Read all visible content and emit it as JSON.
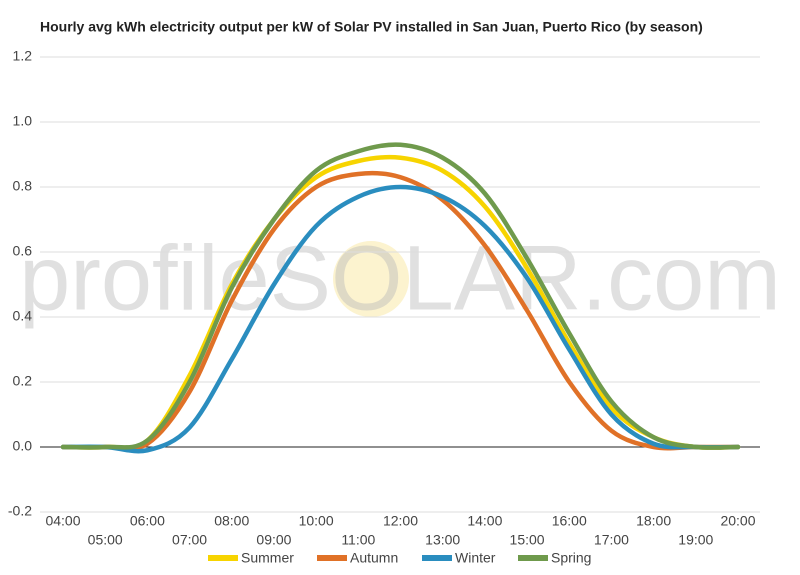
{
  "chart_data": {
    "type": "line",
    "title": "Hourly avg kWh electricity output per kW of Solar PV installed in San Juan, Puerto Rico (by season)",
    "watermark": "profileSOLAR.com",
    "categories": [
      "04:00",
      "05:00",
      "06:00",
      "07:00",
      "08:00",
      "09:00",
      "10:00",
      "11:00",
      "12:00",
      "13:00",
      "14:00",
      "15:00",
      "16:00",
      "17:00",
      "18:00",
      "19:00",
      "20:00"
    ],
    "series": [
      {
        "name": "Summer",
        "color": "#f7d400",
        "values": [
          0,
          0,
          0.02,
          0.22,
          0.5,
          0.7,
          0.83,
          0.88,
          0.89,
          0.85,
          0.74,
          0.55,
          0.32,
          0.12,
          0.03,
          0,
          0
        ]
      },
      {
        "name": "Autumn",
        "color": "#e07127",
        "values": [
          0,
          0,
          0.01,
          0.17,
          0.45,
          0.67,
          0.8,
          0.84,
          0.83,
          0.76,
          0.62,
          0.42,
          0.2,
          0.05,
          0,
          0,
          0
        ]
      },
      {
        "name": "Winter",
        "color": "#2a8dbf",
        "values": [
          0,
          0,
          -0.01,
          0.06,
          0.27,
          0.5,
          0.68,
          0.77,
          0.8,
          0.77,
          0.68,
          0.52,
          0.3,
          0.1,
          0.01,
          0,
          0
        ]
      },
      {
        "name": "Spring",
        "color": "#6f9a4c",
        "values": [
          0,
          0,
          0.02,
          0.2,
          0.49,
          0.7,
          0.85,
          0.91,
          0.93,
          0.89,
          0.78,
          0.58,
          0.35,
          0.14,
          0.03,
          0,
          0
        ]
      }
    ],
    "ylim": [
      -0.2,
      1.2
    ],
    "yticks": [
      -0.2,
      {
        "value": 0,
        "label": "0.0"
      },
      0.2,
      0.4,
      0.6,
      0.8,
      {
        "value": 1,
        "label": "1.0"
      },
      1.2
    ],
    "grid": true,
    "legend": "bottom"
  }
}
